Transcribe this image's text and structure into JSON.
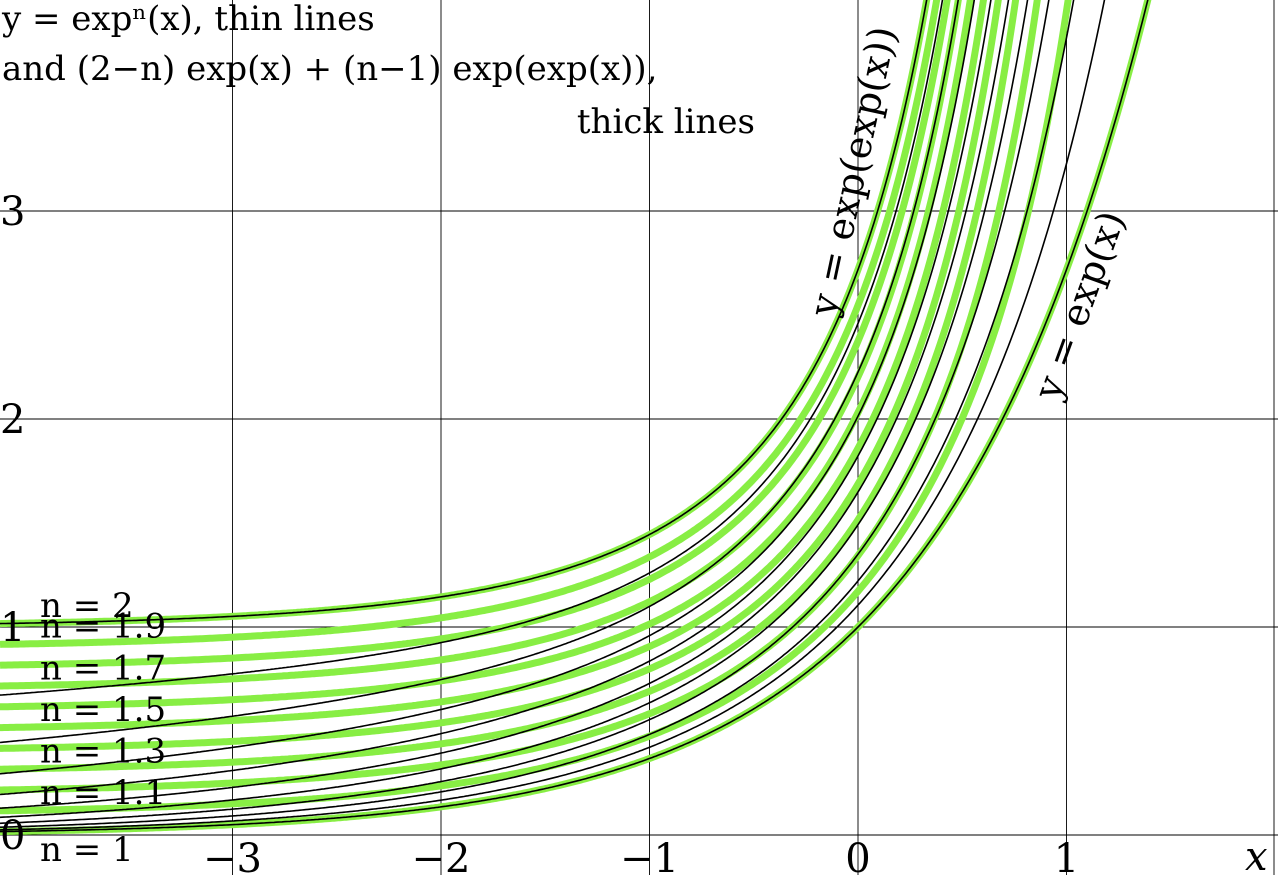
{
  "chart_data": {
    "type": "line",
    "title_lines": [
      "y = expⁿ(x), thin lines",
      "and (2−n) exp(x) + (n−1) exp(exp(x)),",
      "thick lines"
    ],
    "xlabel": "x",
    "ylabel": "",
    "xlim": [
      -4.1,
      2.0
    ],
    "ylim": [
      0,
      4.0
    ],
    "x_ticks": [
      -3,
      -2,
      -1,
      0,
      1
    ],
    "x_tick_labels": [
      "−3",
      "−2",
      "−1",
      "0",
      "1"
    ],
    "y_ticks": [
      0,
      1,
      2,
      3
    ],
    "y_tick_labels": [
      "0",
      "1",
      "2",
      "3"
    ],
    "grid": true,
    "thin_series": {
      "description_label": "y = expⁿ(x)",
      "n_values": [
        1,
        1.1,
        1.2,
        1.3,
        1.4,
        1.5,
        1.6,
        1.7,
        1.8,
        1.9,
        2
      ],
      "color": "#000000"
    },
    "thick_series": {
      "n_values": [
        1,
        1.1,
        1.2,
        1.3,
        1.4,
        1.5,
        1.6,
        1.7,
        1.8,
        1.9,
        2
      ],
      "color": "#88ee44"
    },
    "n_labels": [
      "n = 2",
      "n = 1.9",
      "n = 1.7",
      "n = 1.5",
      "n = 1.3",
      "n = 1.1",
      "n = 1"
    ],
    "curve_labels": {
      "exp_exp": "y = exp(exp(x))",
      "exp": "y = exp(x)"
    }
  }
}
